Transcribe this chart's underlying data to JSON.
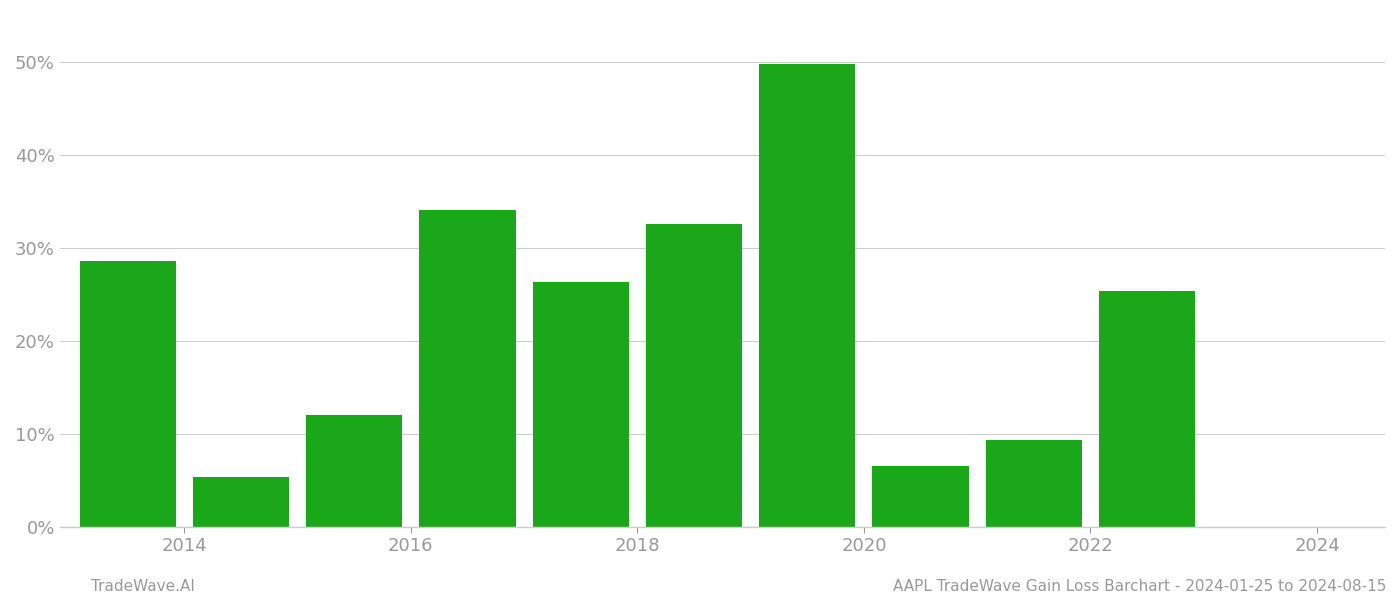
{
  "years": [
    2013,
    2014,
    2015,
    2016,
    2017,
    2018,
    2019,
    2020,
    2021,
    2022,
    2023
  ],
  "values": [
    28.5,
    5.3,
    12.0,
    34.0,
    26.3,
    32.5,
    49.7,
    6.5,
    9.3,
    25.3,
    0.0
  ],
  "bar_color": "#1aa81a",
  "background_color": "#ffffff",
  "grid_color": "#cccccc",
  "axis_label_color": "#999999",
  "footer_left": "TradeWave.AI",
  "footer_right": "AAPL TradeWave Gain Loss Barchart - 2024-01-25 to 2024-08-15",
  "footer_color": "#999999",
  "footer_fontsize": 11,
  "ylim": [
    0,
    55
  ],
  "yticks": [
    0,
    10,
    20,
    30,
    40,
    50
  ],
  "xtick_positions": [
    2013.5,
    2015.5,
    2017.5,
    2019.5,
    2021.5,
    2023.5
  ],
  "xtick_labels": [
    "2014",
    "2016",
    "2018",
    "2020",
    "2022",
    "2024"
  ],
  "bar_width": 0.85,
  "tick_label_fontsize": 13,
  "spine_color": "#cccccc",
  "xlim": [
    2012.4,
    2024.1
  ]
}
